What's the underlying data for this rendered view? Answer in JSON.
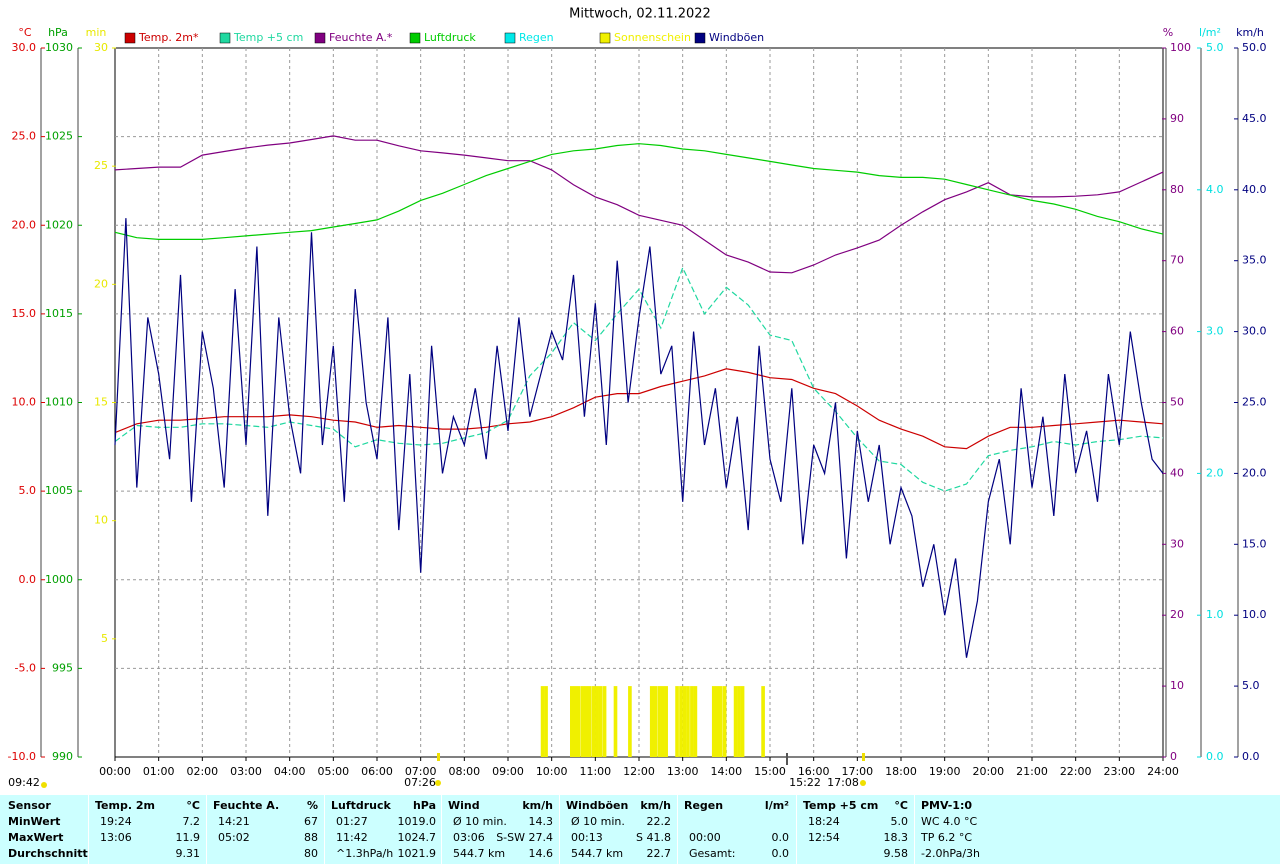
{
  "chart_data": {
    "type": "line",
    "title": "Mittwoch, 02.11.2022",
    "xlim": [
      0,
      24
    ],
    "xticks": [
      {
        "value": 0,
        "label": "00:00"
      },
      {
        "value": 1,
        "label": "01:00"
      },
      {
        "value": 2,
        "label": "02:00"
      },
      {
        "value": 3,
        "label": "03:00"
      },
      {
        "value": 4,
        "label": "04:00"
      },
      {
        "value": 5,
        "label": "05:00"
      },
      {
        "value": 6,
        "label": "06:00"
      },
      {
        "value": 7,
        "label": "07:00"
      },
      {
        "value": 8,
        "label": "08:00"
      },
      {
        "value": 9,
        "label": "09:00"
      },
      {
        "value": 10,
        "label": "10:00"
      },
      {
        "value": 11,
        "label": "11:00"
      },
      {
        "value": 12,
        "label": "12:00"
      },
      {
        "value": 13,
        "label": "13:00"
      },
      {
        "value": 14,
        "label": "14:00"
      },
      {
        "value": 15,
        "label": "15:00"
      },
      {
        "value": 16,
        "label": "16:00"
      },
      {
        "value": 17,
        "label": "17:00"
      },
      {
        "value": 18,
        "label": "18:00"
      },
      {
        "value": 19,
        "label": "19:00"
      },
      {
        "value": 20,
        "label": "20:00"
      },
      {
        "value": 21,
        "label": "21:00"
      },
      {
        "value": 22,
        "label": "22:00"
      },
      {
        "value": 23,
        "label": "23:00"
      },
      {
        "value": 24,
        "label": "24:00"
      }
    ],
    "grid": true,
    "axes": {
      "temp": {
        "label": "°C",
        "color": "#dd0000",
        "side": "left",
        "ylim": [
          -10,
          30
        ],
        "yticks": [
          {
            "value": -10,
            "label": "-10.0"
          },
          {
            "value": -5,
            "label": "-5.0"
          },
          {
            "value": 0,
            "label": "0.0"
          },
          {
            "value": 5,
            "label": "5.0"
          },
          {
            "value": 10,
            "label": "10.0"
          },
          {
            "value": 15,
            "label": "15.0"
          },
          {
            "value": 20,
            "label": "20.0"
          },
          {
            "value": 25,
            "label": "25.0"
          },
          {
            "value": 30,
            "label": "30.0"
          }
        ]
      },
      "press": {
        "label": "hPa",
        "color": "#00a000",
        "side": "left",
        "ylim": [
          990,
          1030
        ],
        "yticks": [
          990,
          995,
          1000,
          1005,
          1010,
          1015,
          1020,
          1025,
          1030
        ]
      },
      "min": {
        "label": "min",
        "color": "#e8e800",
        "side": "left",
        "ylim": [
          0,
          30
        ],
        "yticks": [
          5,
          10,
          15,
          20,
          25,
          30
        ]
      },
      "hum": {
        "label": "%",
        "color": "#800080",
        "side": "right",
        "ylim": [
          0,
          100
        ],
        "yticks": [
          0,
          10,
          20,
          30,
          40,
          50,
          60,
          70,
          80,
          90,
          100
        ]
      },
      "rain": {
        "label": "l/m²",
        "color": "#00e0e0",
        "side": "right",
        "ylim": [
          0,
          5
        ],
        "yticks": [
          {
            "value": 0,
            "label": "0.0"
          },
          {
            "value": 1,
            "label": "1.0"
          },
          {
            "value": 2,
            "label": "2.0"
          },
          {
            "value": 3,
            "label": "3.0"
          },
          {
            "value": 4,
            "label": "4.0"
          },
          {
            "value": 5,
            "label": "5.0"
          }
        ]
      },
      "wind": {
        "label": "km/h",
        "color": "#000080",
        "side": "right",
        "ylim": [
          0,
          50
        ],
        "yticks": [
          {
            "value": 0,
            "label": "0.0"
          },
          {
            "value": 5,
            "label": "5.0"
          },
          {
            "value": 10,
            "label": "10.0"
          },
          {
            "value": 15,
            "label": "15.0"
          },
          {
            "value": 20,
            "label": "20.0"
          },
          {
            "value": 25,
            "label": "25.0"
          },
          {
            "value": 30,
            "label": "30.0"
          },
          {
            "value": 35,
            "label": "35.0"
          },
          {
            "value": 40,
            "label": "40.0"
          },
          {
            "value": 45,
            "label": "45.0"
          },
          {
            "value": 50,
            "label": "50.0"
          }
        ]
      }
    },
    "x": [
      0,
      0.5,
      1,
      1.5,
      2,
      2.5,
      3,
      3.5,
      4,
      4.5,
      5,
      5.5,
      6,
      6.5,
      7,
      7.5,
      8,
      8.5,
      9,
      9.5,
      10,
      10.5,
      11,
      11.5,
      12,
      12.5,
      13,
      13.5,
      14,
      14.5,
      15,
      15.5,
      16,
      16.5,
      17,
      17.5,
      18,
      18.5,
      19,
      19.5,
      20,
      20.5,
      21,
      21.5,
      22,
      22.5,
      23,
      23.5,
      24
    ],
    "series": [
      {
        "name": "Temp. 2m*",
        "color": "#cc0000",
        "axis": "temp",
        "values": [
          8.3,
          8.8,
          9.0,
          9.0,
          9.1,
          9.2,
          9.2,
          9.2,
          9.3,
          9.2,
          9.0,
          8.9,
          8.6,
          8.7,
          8.6,
          8.5,
          8.5,
          8.6,
          8.8,
          8.9,
          9.2,
          9.7,
          10.3,
          10.5,
          10.5,
          10.9,
          11.2,
          11.5,
          11.9,
          11.7,
          11.4,
          11.3,
          10.8,
          10.5,
          9.8,
          9.0,
          8.5,
          8.1,
          7.5,
          7.4,
          8.1,
          8.6,
          8.6,
          8.7,
          8.8,
          8.9,
          9.0,
          8.9,
          8.8
        ]
      },
      {
        "name": "Temp +5 cm",
        "color": "#20d8a0",
        "axis": "temp",
        "dashed": true,
        "values": [
          7.8,
          8.7,
          8.6,
          8.6,
          8.8,
          8.8,
          8.7,
          8.6,
          8.9,
          8.7,
          8.5,
          7.5,
          7.9,
          7.7,
          7.6,
          7.7,
          8.0,
          8.3,
          9.0,
          11.5,
          12.8,
          14.5,
          13.5,
          15.0,
          16.4,
          14.2,
          17.6,
          15.0,
          16.5,
          15.5,
          13.8,
          13.5,
          10.8,
          9.5,
          8.0,
          6.7,
          6.5,
          5.5,
          5.0,
          5.4,
          7.0,
          7.3,
          7.5,
          7.8,
          7.6,
          7.8,
          7.9,
          8.1,
          8.0
        ]
      },
      {
        "name": "Feuchte A.*",
        "color": "#800080",
        "axis": "hum",
        "values": [
          82.8,
          83.0,
          83.2,
          83.2,
          84.9,
          85.4,
          85.9,
          86.3,
          86.6,
          87.1,
          87.6,
          87.0,
          87.0,
          86.2,
          85.5,
          85.2,
          84.9,
          84.5,
          84.1,
          84.1,
          82.8,
          80.7,
          79.0,
          77.9,
          76.4,
          75.7,
          75.0,
          72.9,
          70.8,
          69.8,
          68.4,
          68.3,
          69.4,
          70.8,
          71.8,
          72.9,
          75.0,
          76.9,
          78.6,
          79.7,
          81.0,
          79.3,
          79.0,
          79.0,
          79.1,
          79.3,
          79.7,
          81.1,
          82.5
        ]
      },
      {
        "name": "Luftdruck",
        "color": "#00cc00",
        "axis": "press",
        "values": [
          1019.6,
          1019.3,
          1019.2,
          1019.2,
          1019.2,
          1019.3,
          1019.4,
          1019.5,
          1019.6,
          1019.7,
          1019.9,
          1020.1,
          1020.3,
          1020.8,
          1021.4,
          1021.8,
          1022.3,
          1022.8,
          1023.2,
          1023.6,
          1024.0,
          1024.2,
          1024.3,
          1024.5,
          1024.6,
          1024.5,
          1024.3,
          1024.2,
          1024.0,
          1023.8,
          1023.6,
          1023.4,
          1023.2,
          1023.1,
          1023.0,
          1022.8,
          1022.7,
          1022.7,
          1022.6,
          1022.3,
          1022.0,
          1021.7,
          1021.4,
          1021.2,
          1020.9,
          1020.5,
          1020.2,
          1019.8,
          1019.5
        ]
      },
      {
        "name": "Regen",
        "color": "#00e8e8",
        "axis": "rain"
      },
      {
        "name": "Sonnenschein",
        "color": "#f0f000",
        "axis": "min",
        "type": "bar",
        "x": [
          9.75,
          9.83,
          10.42,
          10.5,
          10.58,
          10.67,
          10.75,
          10.83,
          10.92,
          11.0,
          11.08,
          11.17,
          11.42,
          11.75,
          12.25,
          12.33,
          12.42,
          12.5,
          12.58,
          12.83,
          12.92,
          13.0,
          13.08,
          13.17,
          13.25,
          13.67,
          13.75,
          13.83,
          13.92,
          14.17,
          14.25,
          14.33,
          14.8
        ],
        "values": [
          3,
          3,
          3,
          3,
          3,
          3,
          3,
          3,
          3,
          3,
          3,
          3,
          3,
          3,
          3,
          3,
          3,
          3,
          3,
          3,
          3,
          3,
          3,
          3,
          3,
          3,
          3,
          3,
          3,
          3,
          3,
          3,
          3
        ]
      },
      {
        "name": "Windböen",
        "color": "#000080",
        "axis": "wind",
        "x": [
          0,
          0.25,
          0.5,
          0.75,
          1,
          1.25,
          1.5,
          1.75,
          2,
          2.25,
          2.5,
          2.75,
          3,
          3.25,
          3.5,
          3.75,
          4,
          4.25,
          4.5,
          4.75,
          5,
          5.25,
          5.5,
          5.75,
          6,
          6.25,
          6.5,
          6.75,
          7,
          7.25,
          7.5,
          7.75,
          8,
          8.25,
          8.5,
          8.75,
          9,
          9.25,
          9.5,
          9.75,
          10,
          10.25,
          10.5,
          10.75,
          11,
          11.25,
          11.5,
          11.75,
          12,
          12.25,
          12.5,
          12.75,
          13,
          13.25,
          13.5,
          13.75,
          14,
          14.25,
          14.5,
          14.75,
          15,
          15.25,
          15.5,
          15.75,
          16,
          16.25,
          16.5,
          16.75,
          17,
          17.25,
          17.5,
          17.75,
          18,
          18.25,
          18.5,
          18.75,
          19,
          19.25,
          19.5,
          19.75,
          20,
          20.25,
          20.5,
          20.75,
          21,
          21.25,
          21.5,
          21.75,
          22,
          22.25,
          22.5,
          22.75,
          23,
          23.25,
          23.5,
          23.75,
          24
        ],
        "values": [
          22,
          38,
          19,
          31,
          27,
          21,
          34,
          18,
          30,
          26,
          19,
          33,
          22,
          36,
          17,
          31,
          24,
          20,
          37,
          22,
          29,
          18,
          33,
          25,
          21,
          31,
          16,
          27,
          13,
          29,
          20,
          24,
          22,
          26,
          21,
          29,
          23,
          31,
          24,
          27,
          30,
          28,
          34,
          24,
          32,
          22,
          35,
          25,
          31,
          36,
          27,
          29,
          18,
          30,
          22,
          26,
          19,
          24,
          16,
          29,
          21,
          18,
          26,
          15,
          22,
          20,
          25,
          14,
          23,
          18,
          22,
          15,
          19,
          17,
          12,
          15,
          10,
          14,
          7,
          11,
          18,
          21,
          15,
          26,
          19,
          24,
          17,
          27,
          20,
          23,
          18,
          27,
          22,
          30,
          25,
          21,
          20
        ]
      }
    ],
    "annotations": [
      "09:42",
      "07:26",
      "15:22",
      "17:08"
    ]
  },
  "table": {
    "groups": [
      {
        "header": [
          "Sensor"
        ],
        "rows": [
          [
            "MinWert"
          ],
          [
            "MaxWert"
          ],
          [
            "Durchschnitt"
          ]
        ],
        "align": "left"
      },
      {
        "header": [
          "Temp. 2m",
          "°C"
        ],
        "rows": [
          [
            "19:24",
            "7.2"
          ],
          [
            "13:06",
            "11.9"
          ],
          [
            "9.31"
          ]
        ]
      },
      {
        "header": [
          "Feuchte A.",
          "%"
        ],
        "rows": [
          [
            "14:21",
            "67"
          ],
          [
            "05:02",
            "88"
          ],
          [
            "80"
          ]
        ]
      },
      {
        "header": [
          "Luftdruck",
          "hPa"
        ],
        "rows": [
          [
            "01:27",
            "1019.0"
          ],
          [
            "11:42",
            "1024.7"
          ],
          [
            "^1.3hPa/h",
            "1021.9"
          ]
        ]
      },
      {
        "header": [
          "Wind",
          "km/h"
        ],
        "rows": [
          [
            "Ø 10 min.",
            "14.3"
          ],
          [
            "03:06",
            "S-SW 27.4"
          ],
          [
            "544.7 km",
            "14.6"
          ]
        ]
      },
      {
        "header": [
          "Windböen",
          "km/h"
        ],
        "rows": [
          [
            "Ø 10 min.",
            "22.2"
          ],
          [
            "00:13",
            "S 41.8"
          ],
          [
            "544.7 km",
            "22.7"
          ]
        ]
      },
      {
        "header": [
          "Regen",
          "l/m²"
        ],
        "rows": [
          [],
          [
            "00:00",
            "0.0"
          ],
          [
            "Gesamt:",
            "0.0"
          ]
        ]
      },
      {
        "header": [
          "Temp +5 cm",
          "°C"
        ],
        "rows": [
          [
            "18:24",
            "5.0"
          ],
          [
            "12:54",
            "18.3"
          ],
          [
            "9.58"
          ]
        ]
      },
      {
        "header": [
          "PMV-1:0"
        ],
        "rows": [
          [
            "WC 4.0 °C"
          ],
          [
            "TP 6.2 °C"
          ],
          [
            "-2.0hPa/3h"
          ]
        ],
        "align": "left"
      }
    ]
  }
}
